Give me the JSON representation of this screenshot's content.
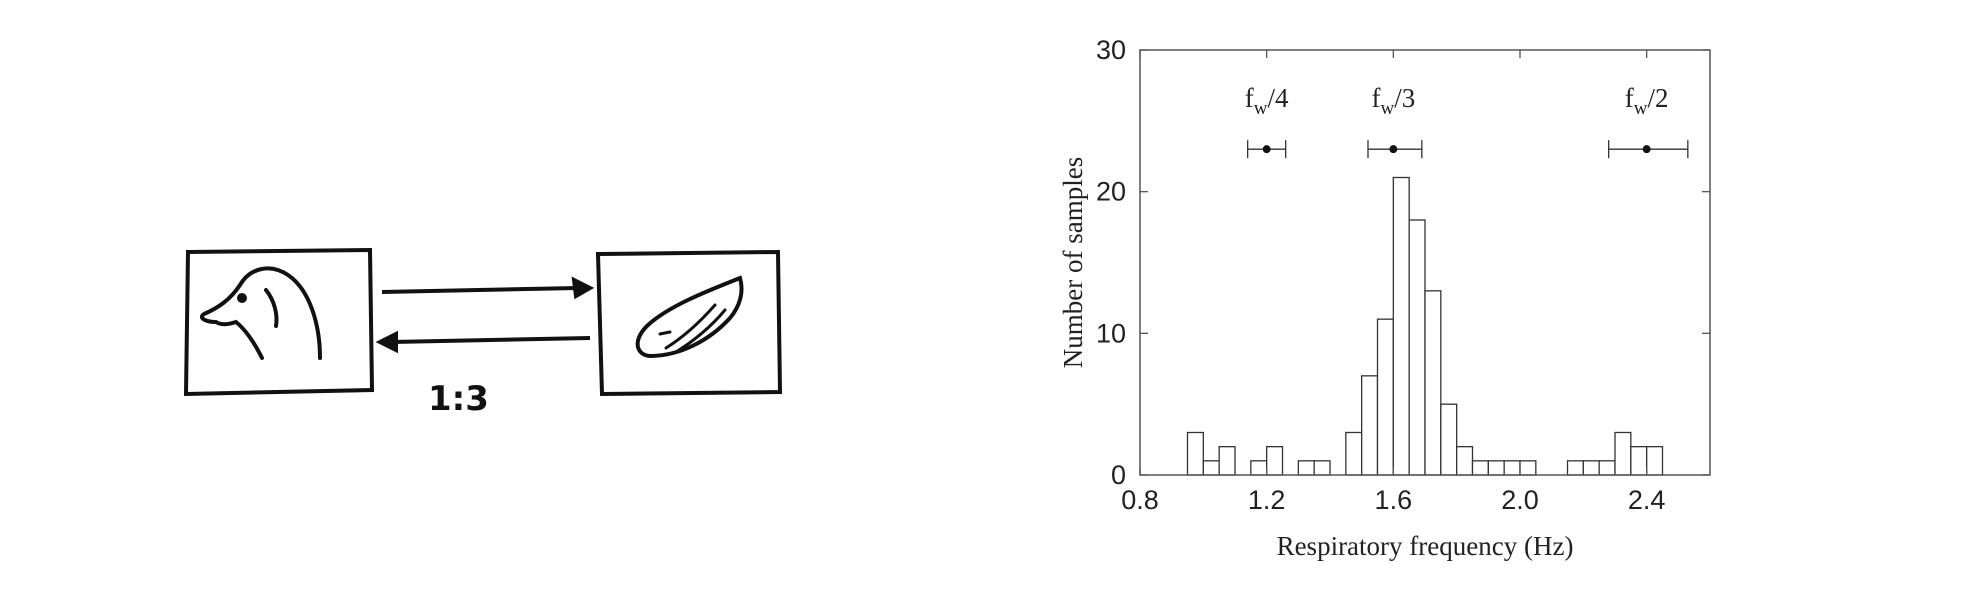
{
  "sketch": {
    "ratio_label": "1:3",
    "left_icon": "duck-head-icon",
    "right_icon": "wing-icon"
  },
  "chart_data": {
    "type": "bar",
    "xlabel": "Respiratory frequency (Hz)",
    "ylabel": "Number of samples",
    "xlim": [
      0.8,
      2.6
    ],
    "ylim": [
      0,
      30
    ],
    "xticks": [
      "0.8",
      "1.2",
      "1.6",
      "2.0",
      "2.4"
    ],
    "yticks": [
      "0",
      "10",
      "20",
      "30"
    ],
    "bin_width": 0.05,
    "bins": [
      {
        "x": 1.0,
        "count": 3
      },
      {
        "x": 1.05,
        "count": 1
      },
      {
        "x": 1.1,
        "count": 2
      },
      {
        "x": 1.2,
        "count": 1
      },
      {
        "x": 1.25,
        "count": 2
      },
      {
        "x": 1.35,
        "count": 1
      },
      {
        "x": 1.4,
        "count": 1
      },
      {
        "x": 1.5,
        "count": 3
      },
      {
        "x": 1.55,
        "count": 7
      },
      {
        "x": 1.6,
        "count": 11
      },
      {
        "x": 1.65,
        "count": 21
      },
      {
        "x": 1.7,
        "count": 18
      },
      {
        "x": 1.75,
        "count": 13
      },
      {
        "x": 1.8,
        "count": 5
      },
      {
        "x": 1.85,
        "count": 2
      },
      {
        "x": 1.9,
        "count": 1
      },
      {
        "x": 1.95,
        "count": 1
      },
      {
        "x": 2.0,
        "count": 1
      },
      {
        "x": 2.05,
        "count": 1
      },
      {
        "x": 2.2,
        "count": 1
      },
      {
        "x": 2.25,
        "count": 1
      },
      {
        "x": 2.3,
        "count": 1
      },
      {
        "x": 2.35,
        "count": 3
      },
      {
        "x": 2.4,
        "count": 2
      },
      {
        "x": 2.45,
        "count": 2
      }
    ],
    "annotations": [
      {
        "label_main": "f",
        "label_sub": "w",
        "label_rest": "/4",
        "x": 1.2,
        "xerr_low": 1.14,
        "xerr_high": 1.26,
        "y": 23
      },
      {
        "label_main": "f",
        "label_sub": "w",
        "label_rest": "/3",
        "x": 1.6,
        "xerr_low": 1.52,
        "xerr_high": 1.69,
        "y": 23
      },
      {
        "label_main": "f",
        "label_sub": "w",
        "label_rest": "/2",
        "x": 2.4,
        "xerr_low": 2.28,
        "xerr_high": 2.53,
        "y": 23
      }
    ],
    "grid": false,
    "colors": {
      "bar_fill": "#ffffff",
      "bar_stroke": "#333333",
      "axis": "#555555"
    }
  }
}
